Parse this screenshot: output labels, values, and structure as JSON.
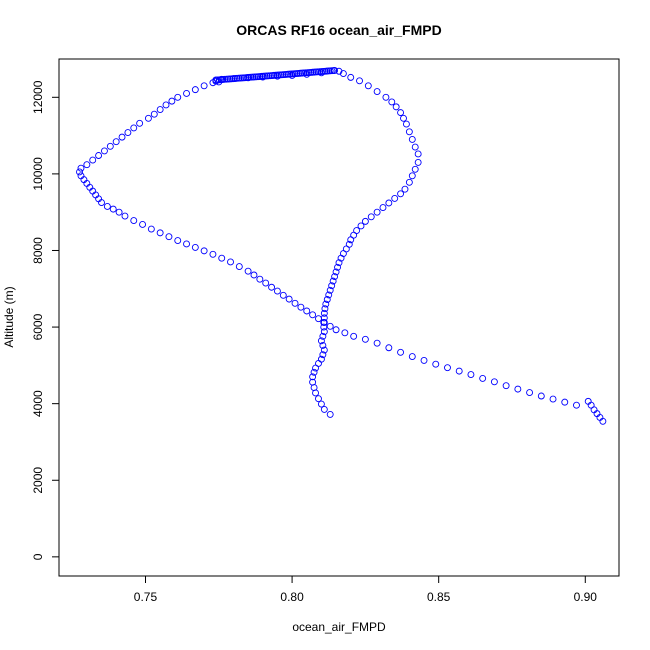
{
  "chart_data": {
    "type": "scatter",
    "title": "ORCAS RF16 ocean_air_FMPD",
    "xlabel": "ocean_air_FMPD",
    "ylabel": "Altitude (m)",
    "xlim": [
      0.7205,
      0.9115
    ],
    "ylim": [
      -500,
      13000
    ],
    "xticks": [
      0.75,
      0.8,
      0.85,
      0.9
    ],
    "xtick_labels": [
      "0.75",
      "0.80",
      "0.85",
      "0.90"
    ],
    "yticks": [
      0,
      2000,
      4000,
      6000,
      8000,
      10000,
      12000
    ],
    "ytick_labels": [
      "0",
      "2000",
      "4000",
      "6000",
      "8000",
      "10000",
      "12000"
    ],
    "grid": false,
    "legend": "none",
    "marker": "open-circle",
    "color": "#0000ff",
    "series": [
      {
        "points": [
          [
            0.813,
            3720
          ],
          [
            0.811,
            3850
          ],
          [
            0.81,
            3990
          ],
          [
            0.809,
            4130
          ],
          [
            0.808,
            4280
          ],
          [
            0.8075,
            4420
          ],
          [
            0.807,
            4560
          ],
          [
            0.807,
            4700
          ],
          [
            0.8075,
            4820
          ],
          [
            0.808,
            4930
          ],
          [
            0.809,
            5050
          ],
          [
            0.81,
            5160
          ],
          [
            0.8105,
            5280
          ],
          [
            0.811,
            5400
          ],
          [
            0.8105,
            5520
          ],
          [
            0.81,
            5640
          ],
          [
            0.8105,
            5760
          ],
          [
            0.811,
            5880
          ],
          [
            0.8108,
            6000
          ],
          [
            0.8108,
            6120
          ],
          [
            0.811,
            6240
          ],
          [
            0.811,
            6360
          ],
          [
            0.8112,
            6480
          ],
          [
            0.8115,
            6600
          ],
          [
            0.812,
            6720
          ],
          [
            0.8125,
            6840
          ],
          [
            0.813,
            6960
          ],
          [
            0.8135,
            7080
          ],
          [
            0.814,
            7200
          ],
          [
            0.8145,
            7320
          ],
          [
            0.815,
            7440
          ],
          [
            0.8155,
            7560
          ],
          [
            0.816,
            7680
          ],
          [
            0.8167,
            7800
          ],
          [
            0.8175,
            7920
          ],
          [
            0.8185,
            8040
          ],
          [
            0.8195,
            8160
          ],
          [
            0.82,
            8280
          ],
          [
            0.821,
            8400
          ],
          [
            0.822,
            8520
          ],
          [
            0.8235,
            8640
          ],
          [
            0.825,
            8760
          ],
          [
            0.827,
            8880
          ],
          [
            0.829,
            9000
          ],
          [
            0.831,
            9120
          ],
          [
            0.833,
            9240
          ],
          [
            0.835,
            9360
          ],
          [
            0.837,
            9480
          ],
          [
            0.8385,
            9600
          ],
          [
            0.84,
            9780
          ],
          [
            0.841,
            9950
          ],
          [
            0.842,
            10120
          ],
          [
            0.843,
            10300
          ],
          [
            0.843,
            10520
          ],
          [
            0.842,
            10700
          ],
          [
            0.841,
            10900
          ],
          [
            0.84,
            11100
          ],
          [
            0.839,
            11300
          ],
          [
            0.838,
            11450
          ],
          [
            0.837,
            11600
          ],
          [
            0.8355,
            11750
          ],
          [
            0.834,
            11880
          ],
          [
            0.832,
            12000
          ],
          [
            0.829,
            12150
          ],
          [
            0.826,
            12300
          ],
          [
            0.823,
            12430
          ],
          [
            0.82,
            12520
          ],
          [
            0.8175,
            12620
          ],
          [
            0.816,
            12680
          ],
          [
            0.8145,
            12700
          ],
          [
            0.81,
            12640
          ],
          [
            0.805,
            12600
          ],
          [
            0.8,
            12570
          ],
          [
            0.795,
            12550
          ],
          [
            0.79,
            12530
          ],
          [
            0.785,
            12510
          ],
          [
            0.78,
            12490
          ],
          [
            0.776,
            12470
          ],
          [
            0.774,
            12450
          ],
          [
            0.774,
            12420
          ],
          [
            0.775,
            12400
          ],
          [
            0.773,
            12380
          ],
          [
            0.77,
            12300
          ],
          [
            0.767,
            12200
          ],
          [
            0.764,
            12100
          ],
          [
            0.761,
            12000
          ],
          [
            0.759,
            11900
          ],
          [
            0.757,
            11800
          ],
          [
            0.755,
            11680
          ],
          [
            0.753,
            11560
          ],
          [
            0.751,
            11450
          ],
          [
            0.748,
            11320
          ],
          [
            0.746,
            11200
          ],
          [
            0.744,
            11080
          ],
          [
            0.742,
            10960
          ],
          [
            0.74,
            10840
          ],
          [
            0.738,
            10720
          ],
          [
            0.736,
            10600
          ],
          [
            0.734,
            10480
          ],
          [
            0.732,
            10360
          ],
          [
            0.73,
            10240
          ],
          [
            0.728,
            10150
          ],
          [
            0.7275,
            10050
          ],
          [
            0.728,
            9950
          ],
          [
            0.729,
            9850
          ],
          [
            0.73,
            9750
          ],
          [
            0.731,
            9650
          ],
          [
            0.732,
            9550
          ],
          [
            0.733,
            9450
          ],
          [
            0.734,
            9350
          ],
          [
            0.735,
            9250
          ],
          [
            0.737,
            9150
          ],
          [
            0.739,
            9080
          ],
          [
            0.741,
            9000
          ],
          [
            0.743,
            8900
          ],
          [
            0.746,
            8780
          ],
          [
            0.749,
            8680
          ],
          [
            0.752,
            8560
          ],
          [
            0.755,
            8460
          ],
          [
            0.758,
            8360
          ],
          [
            0.761,
            8260
          ],
          [
            0.764,
            8170
          ],
          [
            0.767,
            8080
          ],
          [
            0.77,
            7990
          ],
          [
            0.773,
            7900
          ],
          [
            0.776,
            7800
          ],
          [
            0.779,
            7700
          ],
          [
            0.782,
            7580
          ],
          [
            0.785,
            7460
          ],
          [
            0.787,
            7360
          ],
          [
            0.789,
            7250
          ],
          [
            0.791,
            7150
          ],
          [
            0.793,
            7040
          ],
          [
            0.795,
            6940
          ],
          [
            0.797,
            6830
          ],
          [
            0.799,
            6730
          ],
          [
            0.801,
            6620
          ],
          [
            0.803,
            6520
          ],
          [
            0.805,
            6420
          ],
          [
            0.807,
            6320
          ],
          [
            0.809,
            6220
          ],
          [
            0.811,
            6120
          ],
          [
            0.813,
            6020
          ],
          [
            0.815,
            5930
          ],
          [
            0.818,
            5850
          ],
          [
            0.821,
            5760
          ],
          [
            0.825,
            5680
          ],
          [
            0.829,
            5580
          ],
          [
            0.833,
            5460
          ],
          [
            0.837,
            5340
          ],
          [
            0.841,
            5230
          ],
          [
            0.845,
            5130
          ],
          [
            0.849,
            5030
          ],
          [
            0.853,
            4940
          ],
          [
            0.857,
            4850
          ],
          [
            0.861,
            4760
          ],
          [
            0.865,
            4660
          ],
          [
            0.869,
            4570
          ],
          [
            0.873,
            4470
          ],
          [
            0.877,
            4380
          ],
          [
            0.881,
            4290
          ],
          [
            0.885,
            4200
          ],
          [
            0.889,
            4120
          ],
          [
            0.893,
            4040
          ],
          [
            0.897,
            3960
          ],
          [
            0.901,
            4060
          ],
          [
            0.902,
            3960
          ],
          [
            0.903,
            3840
          ],
          [
            0.904,
            3740
          ],
          [
            0.905,
            3640
          ],
          [
            0.906,
            3540
          ]
        ]
      }
    ]
  }
}
